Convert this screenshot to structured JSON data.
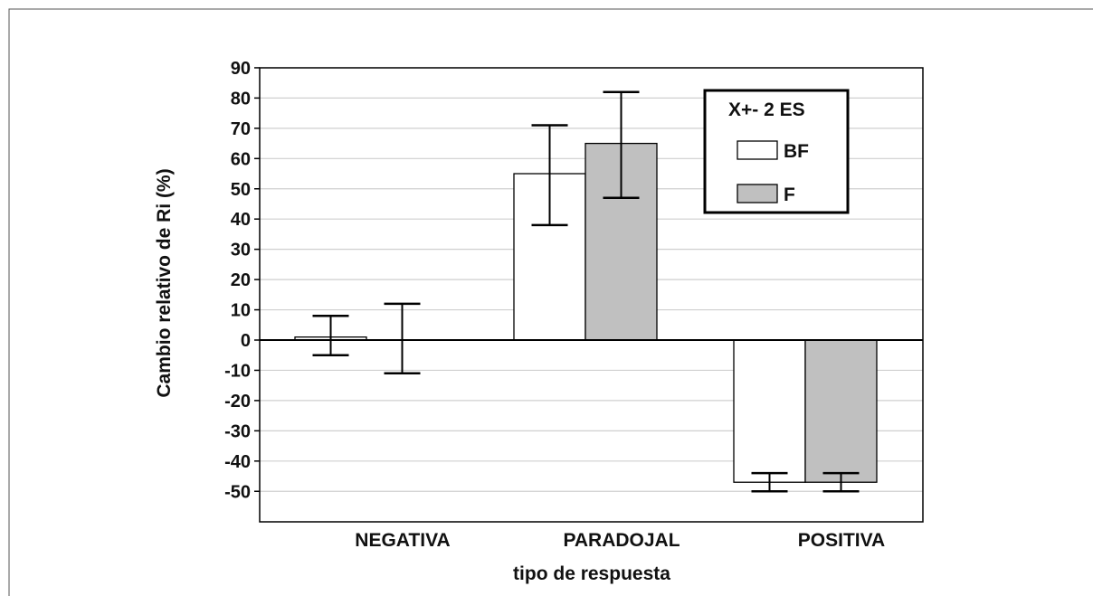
{
  "chart_data": {
    "type": "bar",
    "title": "",
    "xlabel": "tipo de respuesta",
    "ylabel": "Cambio relativo de Ri (%)",
    "ylim": [
      -60,
      90
    ],
    "yticks": [
      90,
      80,
      70,
      60,
      50,
      40,
      30,
      20,
      10,
      0,
      -10,
      -20,
      -30,
      -40,
      -50
    ],
    "categories": [
      "NEGATIVA",
      "PARADOJAL",
      "POSITIVA"
    ],
    "grid": true,
    "legend_position": "top-right",
    "legend_title": "X+- 2 ES",
    "series": [
      {
        "name": "BF",
        "color": "#ffffff",
        "values": [
          1,
          55,
          -47
        ],
        "err_low": [
          -5,
          38,
          -50
        ],
        "err_high": [
          8,
          71,
          -44
        ]
      },
      {
        "name": "F",
        "color": "#c0c0c0",
        "values": [
          0,
          65,
          -47
        ],
        "err_low": [
          -11,
          47,
          -50
        ],
        "err_high": [
          12,
          82,
          -44
        ]
      }
    ]
  }
}
